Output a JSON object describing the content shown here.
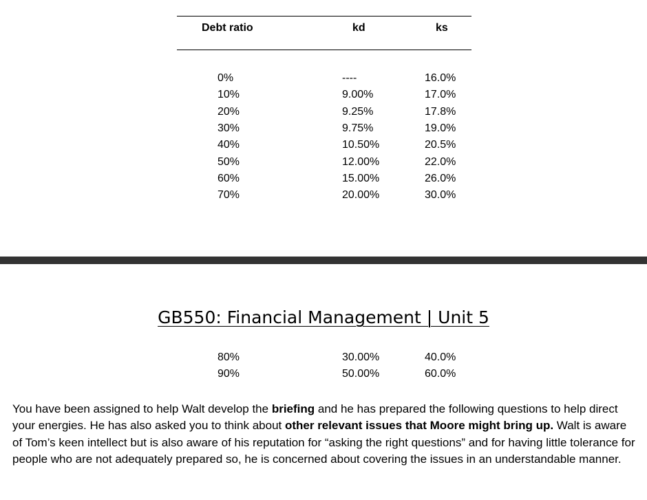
{
  "table": {
    "headers": {
      "debt_ratio": "Debt ratio",
      "kd": "kd",
      "ks": "ks"
    },
    "rows_page1": [
      {
        "debt": "0%",
        "kd": "----",
        "ks": "16.0%"
      },
      {
        "debt": "10%",
        "kd": "9.00%",
        "ks": "17.0%"
      },
      {
        "debt": "20%",
        "kd": "9.25%",
        "ks": "17.8%"
      },
      {
        "debt": "30%",
        "kd": "9.75%",
        "ks": "19.0%"
      },
      {
        "debt": "40%",
        "kd": "10.50%",
        "ks": "20.5%"
      },
      {
        "debt": "50%",
        "kd": "12.00%",
        "ks": "22.0%"
      },
      {
        "debt": "60%",
        "kd": "15.00%",
        "ks": "26.0%"
      },
      {
        "debt": "70%",
        "kd": "20.00%",
        "ks": "30.0%"
      }
    ],
    "rows_page2": [
      {
        "debt": "80%",
        "kd": "30.00%",
        "ks": "40.0%"
      },
      {
        "debt": "90%",
        "kd": "50.00%",
        "ks": "60.0%"
      }
    ]
  },
  "page_header": {
    "title": "GB550: Financial Management | Unit 5"
  },
  "body_text": {
    "p1_a": "You have been assigned to help Walt develop the ",
    "p1_b": "briefing",
    "p1_c": " and he has prepared the following questions to help direct your energies. He has also asked you to think about ",
    "p1_d": "other relevant issues that Moore might bring up.",
    "p1_e": " Walt is aware of Tom’s keen intellect but is also aware of his reputation for “asking the right questions” and for having little tolerance for people who are not adequately prepared so, he is concerned about covering the issues in an understandable manner."
  },
  "colors": {
    "page_divider": "#333333",
    "text": "#000000"
  }
}
